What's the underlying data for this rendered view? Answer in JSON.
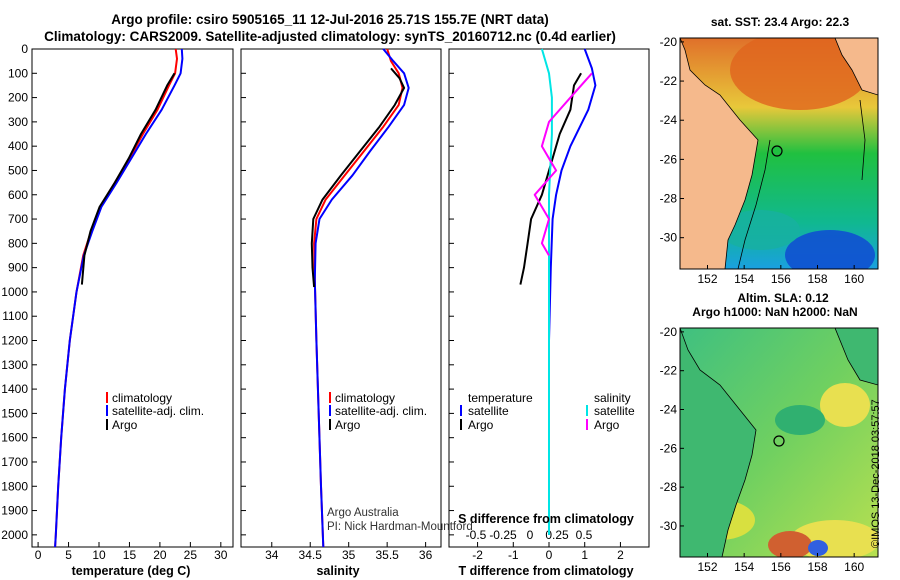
{
  "header": {
    "title_line1": "Argo profile: csiro 5905165_11 12-Jul-2016 25.71S 155.7E (NRT data)",
    "title_line2": "Climatology: CARS2009. Satellite-adjusted climatology: synTS_20160712.nc (0.4d earlier)"
  },
  "colors": {
    "climatology": "#ff0000",
    "satellite": "#0000ff",
    "argo": "#000000",
    "salinity_sat": "#00e5e5",
    "salinity_argo": "#ff00ff",
    "land": "#f5b98c"
  },
  "footer": {
    "argo_australia": "Argo Australia",
    "pi": "PI: Nick Hardman-Mountford",
    "stamp": "©IMOS 13-Dec-2018 03:57:57"
  },
  "maps": {
    "sst": {
      "title": "sat. SST: 23.4 Argo: 22.3",
      "xticks": [
        "152",
        "154",
        "156",
        "158",
        "160"
      ],
      "yticks": [
        "-20",
        "-22",
        "-24",
        "-26",
        "-28",
        "-30"
      ]
    },
    "sla": {
      "title1": "Altim. SLA: 0.12",
      "title2": "Argo h1000: NaN h2000: NaN",
      "xticks": [
        "152",
        "154",
        "156",
        "158",
        "160"
      ],
      "yticks": [
        "-20",
        "-22",
        "-24",
        "-26",
        "-28",
        "-30"
      ]
    }
  },
  "chart_data": [
    {
      "type": "line",
      "name": "temperature",
      "xlabel": "temperature (deg C)",
      "ylabel": "",
      "xlim": [
        -1,
        32
      ],
      "ylim": [
        2050,
        0
      ],
      "xticks": [
        0,
        5,
        10,
        15,
        20,
        25,
        30
      ],
      "yticks": [
        0,
        100,
        200,
        300,
        400,
        500,
        600,
        700,
        800,
        900,
        1000,
        1100,
        1200,
        1300,
        1400,
        1500,
        1600,
        1700,
        1800,
        1900,
        2000
      ],
      "legend": [
        "climatology",
        "satellite-adj. clim.",
        "Argo"
      ],
      "series": [
        {
          "name": "climatology",
          "points": [
            [
              22.6,
              0
            ],
            [
              22.8,
              40
            ],
            [
              22.5,
              100
            ],
            [
              21.5,
              150
            ],
            [
              19.6,
              250
            ],
            [
              17.2,
              350
            ],
            [
              15.0,
              450
            ],
            [
              12.6,
              550
            ],
            [
              10.2,
              650
            ],
            [
              8.7,
              750
            ],
            [
              7.4,
              850
            ],
            [
              6.3,
              1000
            ],
            [
              5.2,
              1200
            ],
            [
              4.4,
              1400
            ],
            [
              3.8,
              1600
            ],
            [
              3.3,
              1800
            ],
            [
              2.9,
              2000
            ],
            [
              2.8,
              2050
            ]
          ]
        },
        {
          "name": "satellite-adj. clim.",
          "points": [
            [
              23.6,
              0
            ],
            [
              23.7,
              40
            ],
            [
              23.4,
              100
            ],
            [
              22.4,
              150
            ],
            [
              20.3,
              250
            ],
            [
              17.7,
              350
            ],
            [
              15.3,
              450
            ],
            [
              12.9,
              550
            ],
            [
              10.4,
              650
            ],
            [
              8.9,
              750
            ],
            [
              7.5,
              850
            ],
            [
              6.3,
              1000
            ],
            [
              5.2,
              1200
            ],
            [
              4.4,
              1400
            ],
            [
              3.8,
              1600
            ],
            [
              3.3,
              1800
            ],
            [
              2.9,
              2000
            ],
            [
              2.8,
              2050
            ]
          ]
        },
        {
          "name": "Argo",
          "points": [
            [
              22.4,
              100
            ],
            [
              21.2,
              150
            ],
            [
              19.3,
              250
            ],
            [
              16.9,
              350
            ],
            [
              14.9,
              450
            ],
            [
              12.6,
              550
            ],
            [
              10.1,
              650
            ],
            [
              8.6,
              750
            ],
            [
              7.6,
              850
            ],
            [
              7.2,
              970
            ]
          ]
        }
      ]
    },
    {
      "type": "line",
      "name": "salinity",
      "xlabel": "salinity",
      "xlim": [
        33.6,
        36.2
      ],
      "ylim": [
        2050,
        0
      ],
      "xticks": [
        34,
        34.5,
        35,
        35.5,
        36
      ],
      "legend": [
        "climatology",
        "satellite-adj. clim.",
        "Argo"
      ],
      "series": [
        {
          "name": "climatology",
          "points": [
            [
              35.5,
              0
            ],
            [
              35.55,
              50
            ],
            [
              35.65,
              100
            ],
            [
              35.7,
              160
            ],
            [
              35.65,
              230
            ],
            [
              35.45,
              320
            ],
            [
              35.2,
              420
            ],
            [
              34.95,
              520
            ],
            [
              34.7,
              620
            ],
            [
              34.58,
              700
            ],
            [
              34.55,
              800
            ],
            [
              34.56,
              950
            ],
            [
              34.58,
              1200
            ],
            [
              34.61,
              1500
            ],
            [
              34.64,
              1800
            ],
            [
              34.67,
              2050
            ]
          ]
        },
        {
          "name": "satellite-adj. clim.",
          "points": [
            [
              35.45,
              0
            ],
            [
              35.58,
              50
            ],
            [
              35.72,
              100
            ],
            [
              35.78,
              160
            ],
            [
              35.72,
              230
            ],
            [
              35.52,
              320
            ],
            [
              35.28,
              420
            ],
            [
              35.05,
              520
            ],
            [
              34.78,
              620
            ],
            [
              34.62,
              700
            ],
            [
              34.57,
              800
            ],
            [
              34.56,
              950
            ],
            [
              34.58,
              1200
            ],
            [
              34.61,
              1500
            ],
            [
              34.64,
              1800
            ],
            [
              34.67,
              2050
            ]
          ]
        },
        {
          "name": "Argo",
          "points": [
            [
              35.55,
              80
            ],
            [
              35.66,
              120
            ],
            [
              35.72,
              160
            ],
            [
              35.6,
              230
            ],
            [
              35.4,
              320
            ],
            [
              35.15,
              420
            ],
            [
              34.9,
              520
            ],
            [
              34.66,
              620
            ],
            [
              34.54,
              700
            ],
            [
              34.52,
              800
            ],
            [
              34.53,
              900
            ],
            [
              34.55,
              980
            ]
          ]
        }
      ]
    },
    {
      "type": "line",
      "name": "difference",
      "xlabel": "T difference from climatology",
      "xlabel_top": "S difference from climatology",
      "xlim": [
        -2.8,
        2.8
      ],
      "ylim": [
        2050,
        0
      ],
      "xticks": [
        -2,
        -1,
        0,
        1,
        2
      ],
      "xticks_top": [
        -0.5,
        -0.25,
        0,
        0.25,
        0.5
      ],
      "legend_left_title": "temperature",
      "legend_right_title": "salinity",
      "legend": [
        "satellite",
        "Argo",
        "satellite",
        "Argo"
      ],
      "series": [
        {
          "name": "T satellite",
          "points": [
            [
              1.0,
              0
            ],
            [
              1.2,
              80
            ],
            [
              1.3,
              150
            ],
            [
              1.1,
              250
            ],
            [
              0.6,
              400
            ],
            [
              0.35,
              500
            ],
            [
              0.2,
              600
            ],
            [
              0.1,
              700
            ],
            [
              0.05,
              900
            ],
            [
              0.0,
              1200
            ],
            [
              0.0,
              2000
            ]
          ]
        },
        {
          "name": "T Argo",
          "points": [
            [
              0.9,
              100
            ],
            [
              0.7,
              150
            ],
            [
              0.6,
              250
            ],
            [
              0.3,
              350
            ],
            [
              0.1,
              450
            ],
            [
              -0.2,
              600
            ],
            [
              -0.5,
              700
            ],
            [
              -0.6,
              800
            ],
            [
              -0.7,
              900
            ],
            [
              -0.8,
              970
            ]
          ]
        },
        {
          "name": "S satellite",
          "points": [
            [
              -0.05,
              0
            ],
            [
              0.0,
              100
            ],
            [
              0.02,
              200
            ],
            [
              0.02,
              350
            ],
            [
              0.0,
              600
            ],
            [
              0.0,
              2000
            ]
          ]
        },
        {
          "name": "S Argo",
          "points": [
            [
              0.3,
              100
            ],
            [
              0.15,
              200
            ],
            [
              0.0,
              300
            ],
            [
              -0.05,
              400
            ],
            [
              0.05,
              500
            ],
            [
              -0.1,
              600
            ],
            [
              0.0,
              700
            ],
            [
              -0.05,
              800
            ],
            [
              0.0,
              850
            ]
          ]
        }
      ]
    }
  ]
}
